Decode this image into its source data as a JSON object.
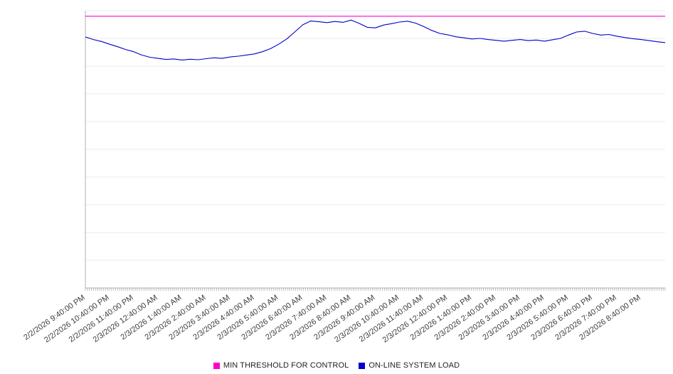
{
  "chart_data": {
    "type": "line",
    "title": "",
    "xlabel": "",
    "ylabel": "",
    "ylim": [
      0,
      100
    ],
    "grid_step": 10,
    "grid_on": true,
    "legend_position": "bottom-center",
    "axis_color": "#b0b0b0",
    "grid_color": "#ebebeb",
    "tick_color": "#9a9a9a",
    "label_color": "#3c3c3c",
    "minor_tick_count": 288,
    "points_per_label": 3,
    "x_labels": [
      "2/2/2026 9:40:00 PM",
      "2/2/2026 10:40:00 PM",
      "2/2/2026 11:40:00 PM",
      "2/3/2026 12:40:00 AM",
      "2/3/2026 1:40:00 AM",
      "2/3/2026 2:40:00 AM",
      "2/3/2026 3:40:00 AM",
      "2/3/2026 4:40:00 AM",
      "2/3/2026 5:40:00 AM",
      "2/3/2026 6:40:00 AM",
      "2/3/2026 7:40:00 AM",
      "2/3/2026 8:40:00 AM",
      "2/3/2026 9:40:00 AM",
      "2/3/2026 10:40:00 AM",
      "2/3/2026 11:40:00 AM",
      "2/3/2026 12:40:00 PM",
      "2/3/2026 1:40:00 PM",
      "2/3/2026 2:40:00 PM",
      "2/3/2026 3:40:00 PM",
      "2/3/2026 4:40:00 PM",
      "2/3/2026 5:40:00 PM",
      "2/3/2026 6:40:00 PM",
      "2/3/2026 7:40:00 PM",
      "2/3/2026 8:40:00 PM"
    ],
    "series": [
      {
        "name": "MIN THRESHOLD FOR CONTROL",
        "color": "#ff00cc",
        "style": "threshold",
        "value": 98
      },
      {
        "name": "ON-LINE SYSTEM LOAD",
        "color": "#0000cc",
        "style": "line",
        "values": [
          90.5,
          89.6,
          88.9,
          87.9,
          87.0,
          86.0,
          85.2,
          84.0,
          83.2,
          82.8,
          82.4,
          82.6,
          82.2,
          82.5,
          82.3,
          82.7,
          83.0,
          82.8,
          83.3,
          83.6,
          84.0,
          84.4,
          85.2,
          86.3,
          87.9,
          89.8,
          92.3,
          94.9,
          96.3,
          96.0,
          95.7,
          96.1,
          95.8,
          96.6,
          95.4,
          94.0,
          93.8,
          94.8,
          95.3,
          95.9,
          96.2,
          95.5,
          94.3,
          92.9,
          91.8,
          91.3,
          90.6,
          90.2,
          89.8,
          90.0,
          89.6,
          89.3,
          89.0,
          89.3,
          89.6,
          89.2,
          89.4,
          89.0,
          89.5,
          90.0,
          91.2,
          92.3,
          92.6,
          91.8,
          91.2,
          91.4,
          90.8,
          90.3,
          89.9,
          89.6,
          89.2,
          88.8,
          88.5
        ]
      }
    ]
  }
}
